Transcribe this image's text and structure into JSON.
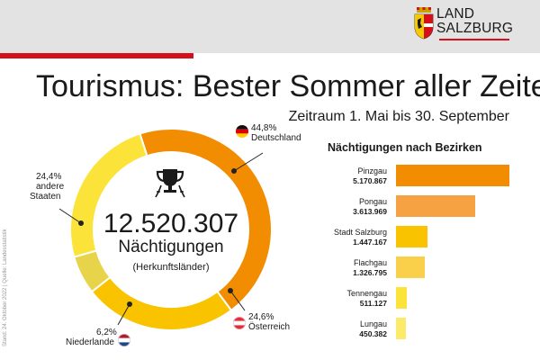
{
  "header": {
    "logo_line1": "LAND",
    "logo_line2": "SALZBURG"
  },
  "title": "Tourismus: Bester Sommer aller Zeiten",
  "subtitle": "Zeitraum 1. Mai bis 30. September",
  "side_note": "Stand: 24. Oktober 2022 | Quelle: Landesstatistik",
  "center": {
    "total": "12.520.307",
    "unit": "Nächtigungen",
    "note": "(Herkunftsländer)"
  },
  "chart_data": [
    {
      "type": "pie",
      "title": "",
      "slices": [
        {
          "name": "Deutschland",
          "label": "44,8%",
          "value": 44.8,
          "color": "#f28c00",
          "flag": "de"
        },
        {
          "name": "Österreich",
          "label": "24,6%",
          "value": 24.6,
          "color": "#f9c300",
          "flag": "at"
        },
        {
          "name": "Niederlande",
          "label": "6,2%",
          "value": 6.2,
          "color": "#e8d44a",
          "flag": "nl"
        },
        {
          "name": "andere Staaten",
          "label": "24,4%",
          "value": 24.4,
          "color": "#fbe33a",
          "flag": ""
        }
      ]
    },
    {
      "type": "bar",
      "title": "Nächtigungen nach Bezirken",
      "categories": [
        "Pinzgau",
        "Pongau",
        "Stadt Salzburg",
        "Flachgau",
        "Tennengau",
        "Lungau"
      ],
      "labels": [
        "5.170.867",
        "3.613.969",
        "1.447.167",
        "1.326.795",
        "511.127",
        "450.382"
      ],
      "values": [
        5170867,
        3613969,
        1447167,
        1326795,
        511127,
        450382
      ],
      "colors": [
        "#f28c00",
        "#f6a243",
        "#f9c300",
        "#fad04a",
        "#fbe33a",
        "#fcea6b"
      ]
    }
  ],
  "slice_labels": {
    "de_pct": "44,8%",
    "de_name": "Deutschland",
    "at_pct": "24,6%",
    "at_name": "Österreich",
    "nl_pct": "6,2%",
    "nl_name": "Niederlande",
    "other_pct": "24,4%",
    "other_name1": "andere",
    "other_name2": "Staaten"
  },
  "colors": {
    "brand_red": "#d6101a",
    "orange": "#f28c00",
    "yellow": "#f9c300"
  },
  "icons": {
    "trophy": "trophy-icon",
    "coat_of_arms": "coat-of-arms-icon"
  }
}
